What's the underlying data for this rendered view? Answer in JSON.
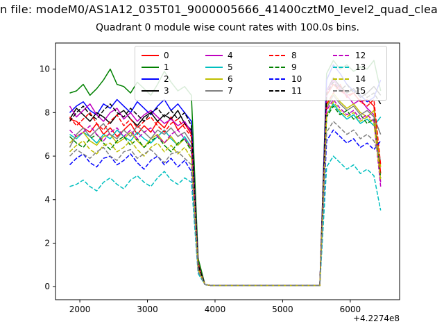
{
  "figure": {
    "file_text": "n file: modeM0/AS1A12_035T01_9000005666_41400cztM0_level2_quad_clea",
    "background": "#ffffff"
  },
  "chart_data": {
    "type": "line",
    "title": "Quadrant 0 module wise count rates with 100.0s bins.",
    "xlabel": "",
    "ylabel": "",
    "x_offset_label": "+4.2274e8",
    "xlim": [
      1640,
      6730
    ],
    "ylim": [
      -0.6,
      11.2
    ],
    "xticks": [
      2000,
      3000,
      4000,
      5000,
      6000
    ],
    "yticks": [
      0,
      2,
      4,
      6,
      8,
      10
    ],
    "grid": false,
    "legend_position": "upper center",
    "legend_columns": 4,
    "x": [
      1850,
      1950,
      2050,
      2150,
      2250,
      2350,
      2450,
      2550,
      2650,
      2750,
      2850,
      2950,
      3050,
      3150,
      3250,
      3350,
      3450,
      3550,
      3650,
      3750,
      3850,
      3950,
      4050,
      4150,
      4250,
      4350,
      4450,
      4550,
      4650,
      4750,
      4850,
      4950,
      5050,
      5150,
      5250,
      5350,
      5450,
      5550,
      5650,
      5750,
      5850,
      5950,
      6050,
      6150,
      6250,
      6350,
      6450
    ],
    "series": [
      {
        "name": "0",
        "color": "#ff0000",
        "dash": "solid",
        "values": [
          7.7,
          7.6,
          7.3,
          7.1,
          7.5,
          7.0,
          7.3,
          6.9,
          7.2,
          7.5,
          7.0,
          7.4,
          7.1,
          7.6,
          7.3,
          7.8,
          7.2,
          7.5,
          7.0,
          1.1,
          0.1,
          0.05,
          0.05,
          0.05,
          0.05,
          0.05,
          0.05,
          0.05,
          0.05,
          0.05,
          0.05,
          0.05,
          0.05,
          0.05,
          0.05,
          0.05,
          0.05,
          0.05,
          8.8,
          9.3,
          9.0,
          8.8,
          8.9,
          8.5,
          8.6,
          8.3,
          5.2
        ]
      },
      {
        "name": "1",
        "color": "#008000",
        "dash": "solid",
        "values": [
          8.9,
          9.0,
          9.3,
          8.8,
          9.1,
          9.5,
          10.0,
          9.3,
          9.2,
          8.9,
          9.4,
          9.1,
          8.8,
          9.3,
          9.9,
          9.4,
          9.0,
          9.2,
          8.8,
          1.3,
          0.1,
          0.05,
          0.05,
          0.05,
          0.05,
          0.05,
          0.05,
          0.05,
          0.05,
          0.05,
          0.05,
          0.05,
          0.05,
          0.05,
          0.05,
          0.05,
          0.05,
          0.05,
          9.8,
          10.4,
          10.0,
          10.2,
          9.9,
          10.1,
          10.0,
          10.4,
          9.0
        ]
      },
      {
        "name": "2",
        "color": "#0000ff",
        "dash": "solid",
        "values": [
          8.0,
          8.3,
          8.5,
          8.1,
          7.9,
          8.4,
          8.2,
          8.6,
          8.3,
          8.0,
          8.5,
          8.2,
          7.9,
          8.3,
          8.6,
          8.1,
          8.4,
          8.0,
          7.6,
          1.0,
          0.1,
          0.05,
          0.05,
          0.05,
          0.05,
          0.05,
          0.05,
          0.05,
          0.05,
          0.05,
          0.05,
          0.05,
          0.05,
          0.05,
          0.05,
          0.05,
          0.05,
          0.05,
          9.5,
          10.2,
          9.8,
          9.3,
          9.0,
          8.8,
          8.5,
          8.7,
          9.5
        ]
      },
      {
        "name": "3",
        "color": "#000000",
        "dash": "solid",
        "values": [
          7.7,
          8.2,
          7.9,
          7.6,
          8.0,
          7.8,
          7.5,
          7.9,
          8.1,
          7.7,
          7.4,
          7.8,
          8.0,
          7.6,
          7.9,
          7.7,
          8.1,
          7.5,
          7.2,
          0.9,
          0.1,
          0.05,
          0.05,
          0.05,
          0.05,
          0.05,
          0.05,
          0.05,
          0.05,
          0.05,
          0.05,
          0.05,
          0.05,
          0.05,
          0.05,
          0.05,
          0.05,
          0.05,
          9.0,
          9.6,
          9.2,
          8.9,
          9.1,
          8.7,
          8.9,
          9.2,
          8.8
        ]
      },
      {
        "name": "4",
        "color": "#bf00bf",
        "dash": "solid",
        "values": [
          8.3,
          7.8,
          8.1,
          8.4,
          7.9,
          7.6,
          8.0,
          8.2,
          7.7,
          8.0,
          7.6,
          7.9,
          8.1,
          7.8,
          7.5,
          7.7,
          7.4,
          7.6,
          7.1,
          1.0,
          0.1,
          0.05,
          0.05,
          0.05,
          0.05,
          0.05,
          0.05,
          0.05,
          0.05,
          0.05,
          0.05,
          0.05,
          0.05,
          0.05,
          0.05,
          0.05,
          0.05,
          0.05,
          9.0,
          9.5,
          9.1,
          8.8,
          8.4,
          8.6,
          8.2,
          7.9,
          4.8
        ]
      },
      {
        "name": "5",
        "color": "#00bfbf",
        "dash": "solid",
        "values": [
          7.0,
          6.8,
          7.1,
          6.9,
          6.6,
          7.0,
          6.8,
          7.2,
          6.9,
          6.7,
          7.1,
          6.8,
          6.6,
          6.9,
          7.2,
          6.8,
          6.5,
          6.9,
          6.4,
          0.8,
          0.1,
          0.05,
          0.05,
          0.05,
          0.05,
          0.05,
          0.05,
          0.05,
          0.05,
          0.05,
          0.05,
          0.05,
          0.05,
          0.05,
          0.05,
          0.05,
          0.05,
          0.05,
          7.9,
          8.4,
          8.0,
          7.7,
          7.9,
          7.5,
          7.7,
          7.4,
          7.8
        ]
      },
      {
        "name": "6",
        "color": "#bfbf00",
        "dash": "solid",
        "values": [
          6.6,
          6.9,
          7.1,
          6.7,
          6.5,
          6.9,
          7.0,
          6.6,
          6.8,
          7.1,
          6.7,
          6.4,
          6.8,
          7.0,
          6.6,
          6.9,
          6.5,
          6.8,
          6.3,
          0.8,
          0.1,
          0.05,
          0.05,
          0.05,
          0.05,
          0.05,
          0.05,
          0.05,
          0.05,
          0.05,
          0.05,
          0.05,
          0.05,
          0.05,
          0.05,
          0.05,
          0.05,
          0.05,
          8.3,
          8.9,
          8.5,
          8.2,
          8.4,
          8.0,
          7.8,
          8.1,
          5.5
        ]
      },
      {
        "name": "7",
        "color": "#808080",
        "dash": "solid",
        "values": [
          6.4,
          7.0,
          7.3,
          6.9,
          7.2,
          7.5,
          7.0,
          6.8,
          7.2,
          6.9,
          7.4,
          7.1,
          6.8,
          7.2,
          7.0,
          7.3,
          6.9,
          7.1,
          6.6,
          0.9,
          0.1,
          0.05,
          0.05,
          0.05,
          0.05,
          0.05,
          0.05,
          0.05,
          0.05,
          0.05,
          0.05,
          0.05,
          0.05,
          0.05,
          0.05,
          0.05,
          0.05,
          0.05,
          8.2,
          8.8,
          8.4,
          8.1,
          8.3,
          7.9,
          8.1,
          7.8,
          7.0
        ]
      },
      {
        "name": "8",
        "color": "#ff0000",
        "dash": "dashed",
        "values": [
          7.8,
          7.4,
          7.7,
          8.0,
          7.5,
          7.2,
          7.6,
          7.9,
          7.4,
          7.7,
          7.3,
          7.6,
          7.8,
          7.4,
          7.1,
          7.5,
          7.7,
          7.3,
          6.9,
          0.9,
          0.1,
          0.05,
          0.05,
          0.05,
          0.05,
          0.05,
          0.05,
          0.05,
          0.05,
          0.05,
          0.05,
          0.05,
          0.05,
          0.05,
          0.05,
          0.05,
          0.05,
          0.05,
          8.4,
          8.9,
          9.3,
          8.7,
          8.9,
          8.5,
          8.3,
          8.6,
          5.6
        ]
      },
      {
        "name": "9",
        "color": "#008000",
        "dash": "dashed",
        "values": [
          6.9,
          6.6,
          6.4,
          6.8,
          7.0,
          6.6,
          6.3,
          6.7,
          6.9,
          6.5,
          6.8,
          6.4,
          6.7,
          6.9,
          6.5,
          6.2,
          6.6,
          6.8,
          6.2,
          0.8,
          0.1,
          0.05,
          0.05,
          0.05,
          0.05,
          0.05,
          0.05,
          0.05,
          0.05,
          0.05,
          0.05,
          0.05,
          0.05,
          0.05,
          0.05,
          0.05,
          0.05,
          0.05,
          7.8,
          8.3,
          7.9,
          8.1,
          7.7,
          7.9,
          7.5,
          7.7,
          5.0
        ]
      },
      {
        "name": "10",
        "color": "#0000ff",
        "dash": "dashed",
        "values": [
          5.6,
          5.9,
          6.1,
          5.7,
          5.5,
          5.9,
          6.0,
          5.6,
          5.8,
          6.1,
          5.7,
          5.4,
          5.8,
          6.0,
          5.6,
          5.9,
          5.5,
          5.8,
          5.3,
          0.7,
          0.1,
          0.05,
          0.05,
          0.05,
          0.05,
          0.05,
          0.05,
          0.05,
          0.05,
          0.05,
          0.05,
          0.05,
          0.05,
          0.05,
          0.05,
          0.05,
          0.05,
          0.05,
          6.7,
          7.2,
          6.9,
          6.6,
          6.8,
          6.4,
          6.6,
          6.3,
          6.7
        ]
      },
      {
        "name": "11",
        "color": "#000000",
        "dash": "dashed",
        "values": [
          7.6,
          8.0,
          8.3,
          7.9,
          7.7,
          8.1,
          8.4,
          8.0,
          7.8,
          8.2,
          7.9,
          7.6,
          8.0,
          8.2,
          7.8,
          8.1,
          7.7,
          8.0,
          7.4,
          1.0,
          0.1,
          0.05,
          0.05,
          0.05,
          0.05,
          0.05,
          0.05,
          0.05,
          0.05,
          0.05,
          0.05,
          0.05,
          0.05,
          0.05,
          0.05,
          0.05,
          0.05,
          0.05,
          8.9,
          9.4,
          9.0,
          9.3,
          8.9,
          9.1,
          8.7,
          8.9,
          8.4
        ]
      },
      {
        "name": "12",
        "color": "#bf00bf",
        "dash": "dashed",
        "values": [
          7.2,
          6.9,
          7.1,
          7.4,
          7.0,
          6.7,
          7.1,
          7.3,
          6.9,
          7.2,
          6.8,
          7.1,
          7.3,
          6.9,
          6.6,
          7.0,
          7.2,
          6.8,
          6.4,
          0.8,
          0.1,
          0.05,
          0.05,
          0.05,
          0.05,
          0.05,
          0.05,
          0.05,
          0.05,
          0.05,
          0.05,
          0.05,
          0.05,
          0.05,
          0.05,
          0.05,
          0.05,
          0.05,
          8.1,
          8.6,
          8.2,
          7.9,
          8.1,
          7.7,
          7.9,
          7.6,
          4.6
        ]
      },
      {
        "name": "13",
        "color": "#00bfbf",
        "dash": "dashed",
        "values": [
          4.6,
          4.7,
          4.9,
          4.6,
          4.4,
          4.8,
          5.0,
          4.7,
          4.5,
          4.9,
          5.1,
          4.8,
          4.6,
          5.0,
          5.3,
          4.9,
          4.7,
          5.0,
          4.8,
          0.6,
          0.1,
          0.05,
          0.05,
          0.05,
          0.05,
          0.05,
          0.05,
          0.05,
          0.05,
          0.05,
          0.05,
          0.05,
          0.05,
          0.05,
          0.05,
          0.05,
          0.05,
          0.05,
          5.5,
          6.0,
          5.7,
          5.4,
          5.6,
          5.2,
          5.4,
          5.1,
          3.5
        ]
      },
      {
        "name": "14",
        "color": "#bfbf00",
        "dash": "dashed",
        "values": [
          6.2,
          6.5,
          6.7,
          6.3,
          6.1,
          6.5,
          6.6,
          6.2,
          6.4,
          6.7,
          6.3,
          6.0,
          6.4,
          6.6,
          6.2,
          6.5,
          6.1,
          6.4,
          5.9,
          0.8,
          0.1,
          0.05,
          0.05,
          0.05,
          0.05,
          0.05,
          0.05,
          0.05,
          0.05,
          0.05,
          0.05,
          0.05,
          0.05,
          0.05,
          0.05,
          0.05,
          0.05,
          0.05,
          7.9,
          8.5,
          8.1,
          7.8,
          8.0,
          7.6,
          7.8,
          7.5,
          4.9
        ]
      },
      {
        "name": "15",
        "color": "#808080",
        "dash": "dashed",
        "values": [
          6.0,
          6.3,
          6.1,
          5.9,
          6.2,
          6.4,
          6.0,
          5.8,
          6.2,
          6.3,
          5.9,
          6.1,
          6.3,
          6.0,
          5.7,
          6.1,
          6.2,
          5.9,
          5.6,
          0.7,
          0.1,
          0.05,
          0.05,
          0.05,
          0.05,
          0.05,
          0.05,
          0.05,
          0.05,
          0.05,
          0.05,
          0.05,
          0.05,
          0.05,
          0.05,
          0.05,
          0.05,
          0.05,
          7.1,
          7.6,
          7.3,
          7.0,
          7.2,
          6.8,
          7.0,
          6.7,
          5.8
        ]
      }
    ]
  }
}
